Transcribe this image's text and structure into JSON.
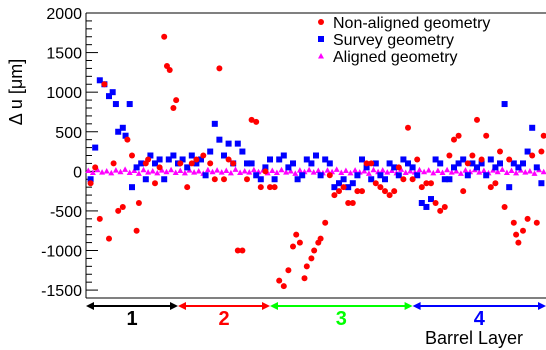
{
  "chart_data": {
    "type": "scatter",
    "title": "",
    "xlabel": "Barrel Layer",
    "ylabel": "Δ u [μm]",
    "ylim": [
      -1600,
      2000
    ],
    "yticks": [
      -1500,
      -1000,
      -500,
      0,
      500,
      1000,
      1500,
      2000
    ],
    "x_range": [
      0,
      100
    ],
    "legend_position": "top-right",
    "grid": false,
    "series": [
      {
        "name": "Non-aligned geometry",
        "color": "#ff0000",
        "marker": "circle",
        "points": [
          [
            1.0,
            -150
          ],
          [
            2.0,
            50
          ],
          [
            3.0,
            -600
          ],
          [
            4.0,
            1100
          ],
          [
            5.0,
            -850
          ],
          [
            6.0,
            100
          ],
          [
            7.0,
            -500
          ],
          [
            8.0,
            -450
          ],
          [
            9.0,
            400
          ],
          [
            10.0,
            200
          ],
          [
            11.0,
            -750
          ],
          [
            11.5,
            -400
          ],
          [
            13.0,
            100
          ],
          [
            13.5,
            150
          ],
          [
            15.0,
            -150
          ],
          [
            16.0,
            50
          ],
          [
            17.0,
            1700
          ],
          [
            17.6,
            1330
          ],
          [
            18.2,
            1280
          ],
          [
            19.0,
            800
          ],
          [
            19.6,
            900
          ],
          [
            20.5,
            100
          ],
          [
            22.0,
            -200
          ],
          [
            23.0,
            100
          ],
          [
            24.0,
            150
          ],
          [
            25.5,
            200
          ],
          [
            27.0,
            100
          ],
          [
            28.0,
            -100
          ],
          [
            29.0,
            1300
          ],
          [
            30.0,
            -100
          ],
          [
            31.0,
            150
          ],
          [
            32.0,
            100
          ],
          [
            33.0,
            -1000
          ],
          [
            34.0,
            -1000
          ],
          [
            35.0,
            -100
          ],
          [
            36.0,
            650
          ],
          [
            37.0,
            625
          ],
          [
            38.0,
            -200
          ],
          [
            39.0,
            0
          ],
          [
            40.0,
            -200
          ],
          [
            41.0,
            -200
          ],
          [
            42.0,
            -1380
          ],
          [
            43.0,
            -1450
          ],
          [
            44.0,
            -1250
          ],
          [
            45.0,
            -950
          ],
          [
            45.7,
            -800
          ],
          [
            46.5,
            -900
          ],
          [
            47.5,
            -1350
          ],
          [
            48.0,
            -1200
          ],
          [
            49.0,
            -1100
          ],
          [
            49.6,
            -1000
          ],
          [
            50.5,
            -900
          ],
          [
            51.0,
            -850
          ],
          [
            52.0,
            -650
          ],
          [
            53.0,
            -50
          ],
          [
            54.0,
            -300
          ],
          [
            55.0,
            -250
          ],
          [
            56.0,
            -200
          ],
          [
            57.0,
            -400
          ],
          [
            58.0,
            -400
          ],
          [
            59.0,
            -250
          ],
          [
            60.0,
            -250
          ],
          [
            61.0,
            100
          ],
          [
            62.0,
            100
          ],
          [
            63.0,
            -150
          ],
          [
            64.0,
            -200
          ],
          [
            65.0,
            -250
          ],
          [
            66.0,
            -300
          ],
          [
            67.0,
            -250
          ],
          [
            68.0,
            50
          ],
          [
            69.0,
            -100
          ],
          [
            70.0,
            550
          ],
          [
            71.0,
            -100
          ],
          [
            72.0,
            150
          ],
          [
            73.0,
            -200
          ],
          [
            74.0,
            -150
          ],
          [
            75.0,
            -150
          ],
          [
            76.0,
            -400
          ],
          [
            77.0,
            -500
          ],
          [
            78.0,
            -450
          ],
          [
            79.0,
            200
          ],
          [
            80.0,
            400
          ],
          [
            81.0,
            450
          ],
          [
            82.0,
            -250
          ],
          [
            83.0,
            100
          ],
          [
            84.0,
            200
          ],
          [
            85.0,
            650
          ],
          [
            86.0,
            150
          ],
          [
            87.0,
            450
          ],
          [
            88.0,
            -200
          ],
          [
            89.0,
            -150
          ],
          [
            90.0,
            250
          ],
          [
            91.0,
            -450
          ],
          [
            92.0,
            150
          ],
          [
            93.0,
            -650
          ],
          [
            93.5,
            -800
          ],
          [
            94.0,
            -900
          ],
          [
            95.0,
            -750
          ],
          [
            96.0,
            -600
          ],
          [
            97.0,
            200
          ],
          [
            98.0,
            -650
          ],
          [
            99.0,
            250
          ],
          [
            99.5,
            450
          ]
        ]
      },
      {
        "name": "Survey geometry",
        "color": "#0000ff",
        "marker": "square",
        "points": [
          [
            1.0,
            -100
          ],
          [
            2.0,
            300
          ],
          [
            3.0,
            1150
          ],
          [
            4.0,
            1100
          ],
          [
            5.0,
            950
          ],
          [
            5.8,
            1000
          ],
          [
            6.5,
            850
          ],
          [
            7.0,
            500
          ],
          [
            8.0,
            550
          ],
          [
            8.6,
            450
          ],
          [
            9.5,
            850
          ],
          [
            10.0,
            -200
          ],
          [
            11.0,
            50
          ],
          [
            12.0,
            100
          ],
          [
            13.0,
            -100
          ],
          [
            14.0,
            200
          ],
          [
            15.0,
            100
          ],
          [
            16.0,
            150
          ],
          [
            17.0,
            -100
          ],
          [
            18.0,
            150
          ],
          [
            19.0,
            200
          ],
          [
            20.0,
            100
          ],
          [
            21.0,
            150
          ],
          [
            22.0,
            50
          ],
          [
            23.0,
            200
          ],
          [
            24.0,
            100
          ],
          [
            25.0,
            150
          ],
          [
            26.0,
            -50
          ],
          [
            27.0,
            250
          ],
          [
            28.0,
            600
          ],
          [
            29.0,
            400
          ],
          [
            30.0,
            200
          ],
          [
            31.0,
            350
          ],
          [
            32.0,
            100
          ],
          [
            33.0,
            350
          ],
          [
            34.0,
            250
          ],
          [
            35.0,
            100
          ],
          [
            36.0,
            100
          ],
          [
            37.0,
            -50
          ],
          [
            38.0,
            -100
          ],
          [
            39.0,
            50
          ],
          [
            40.0,
            150
          ],
          [
            41.0,
            -100
          ],
          [
            42.0,
            150
          ],
          [
            43.0,
            200
          ],
          [
            44.0,
            50
          ],
          [
            45.0,
            100
          ],
          [
            46.0,
            -100
          ],
          [
            47.0,
            -50
          ],
          [
            48.0,
            150
          ],
          [
            49.0,
            100
          ],
          [
            50.0,
            200
          ],
          [
            51.0,
            -50
          ],
          [
            52.0,
            150
          ],
          [
            53.0,
            100
          ],
          [
            54.0,
            -200
          ],
          [
            55.0,
            -150
          ],
          [
            56.0,
            -100
          ],
          [
            57.0,
            -200
          ],
          [
            58.0,
            -150
          ],
          [
            59.0,
            -50
          ],
          [
            60.0,
            150
          ],
          [
            61.0,
            50
          ],
          [
            62.0,
            -100
          ],
          [
            63.0,
            100
          ],
          [
            64.0,
            -50
          ],
          [
            65.0,
            -100
          ],
          [
            66.0,
            100
          ],
          [
            67.0,
            50
          ],
          [
            68.0,
            -50
          ],
          [
            69.0,
            150
          ],
          [
            70.0,
            100
          ],
          [
            71.0,
            50
          ],
          [
            72.0,
            -50
          ],
          [
            73.0,
            -400
          ],
          [
            74.0,
            -450
          ],
          [
            75.0,
            -350
          ],
          [
            76.0,
            150
          ],
          [
            77.0,
            100
          ],
          [
            78.0,
            -100
          ],
          [
            79.0,
            -100
          ],
          [
            80.0,
            50
          ],
          [
            81.0,
            100
          ],
          [
            82.0,
            150
          ],
          [
            83.0,
            -50
          ],
          [
            84.0,
            100
          ],
          [
            85.0,
            50
          ],
          [
            86.0,
            100
          ],
          [
            87.0,
            -50
          ],
          [
            88.0,
            150
          ],
          [
            89.0,
            50
          ],
          [
            90.0,
            100
          ],
          [
            91.0,
            850
          ],
          [
            92.0,
            -200
          ],
          [
            93.0,
            100
          ],
          [
            94.0,
            50
          ],
          [
            95.0,
            100
          ],
          [
            96.0,
            250
          ],
          [
            97.0,
            550
          ],
          [
            98.0,
            50
          ],
          [
            99.0,
            -150
          ]
        ]
      },
      {
        "name": "Aligned geometry",
        "color": "#ff00ff",
        "marker": "triangle",
        "points": [
          [
            0.5,
            10
          ],
          [
            1.5,
            -15
          ],
          [
            2.5,
            20
          ],
          [
            3.5,
            -10
          ],
          [
            4.5,
            5
          ],
          [
            5.5,
            -20
          ],
          [
            6.5,
            15
          ],
          [
            7.5,
            -5
          ],
          [
            8.5,
            25
          ],
          [
            9.5,
            -15
          ],
          [
            10.5,
            10
          ],
          [
            11.5,
            -25
          ],
          [
            12.5,
            20
          ],
          [
            13.5,
            -10
          ],
          [
            14.5,
            5
          ],
          [
            15.5,
            -20
          ],
          [
            16.5,
            15
          ],
          [
            17.5,
            -5
          ],
          [
            18.5,
            20
          ],
          [
            19.5,
            -15
          ],
          [
            20.5,
            10
          ],
          [
            21.5,
            -20
          ],
          [
            22.5,
            15
          ],
          [
            23.5,
            -10
          ],
          [
            24.5,
            5
          ],
          [
            25.5,
            -25
          ],
          [
            26.5,
            20
          ],
          [
            27.5,
            -5
          ],
          [
            28.5,
            15
          ],
          [
            29.5,
            -10
          ],
          [
            30.5,
            10
          ],
          [
            31.5,
            -20
          ],
          [
            32.5,
            25
          ],
          [
            33.5,
            -15
          ],
          [
            34.5,
            5
          ],
          [
            35.5,
            -10
          ],
          [
            36.5,
            20
          ],
          [
            37.5,
            -5
          ],
          [
            38.5,
            15
          ],
          [
            39.5,
            -20
          ],
          [
            40.5,
            10
          ],
          [
            41.5,
            -15
          ],
          [
            42.5,
            20
          ],
          [
            43.5,
            -10
          ],
          [
            44.5,
            5
          ],
          [
            45.5,
            -25
          ],
          [
            46.5,
            15
          ],
          [
            47.5,
            -5
          ],
          [
            48.5,
            20
          ],
          [
            49.5,
            -10
          ],
          [
            50.5,
            10
          ],
          [
            51.5,
            -20
          ],
          [
            52.5,
            15
          ],
          [
            53.5,
            -5
          ],
          [
            54.5,
            25
          ],
          [
            55.5,
            -15
          ],
          [
            56.5,
            10
          ],
          [
            57.5,
            -20
          ],
          [
            58.5,
            15
          ],
          [
            59.5,
            -10
          ],
          [
            60.5,
            5
          ],
          [
            61.5,
            -25
          ],
          [
            62.5,
            20
          ],
          [
            63.5,
            -5
          ],
          [
            64.5,
            15
          ],
          [
            65.5,
            -10
          ],
          [
            66.5,
            10
          ],
          [
            67.5,
            -20
          ],
          [
            68.5,
            25
          ],
          [
            69.5,
            -15
          ],
          [
            70.5,
            5
          ],
          [
            71.5,
            -10
          ],
          [
            72.5,
            20
          ],
          [
            73.5,
            -5
          ],
          [
            74.5,
            15
          ],
          [
            75.5,
            -20
          ],
          [
            76.5,
            10
          ],
          [
            77.5,
            -15
          ],
          [
            78.5,
            20
          ],
          [
            79.5,
            -10
          ],
          [
            80.5,
            5
          ],
          [
            81.5,
            -25
          ],
          [
            82.5,
            15
          ],
          [
            83.5,
            -5
          ],
          [
            84.5,
            20
          ],
          [
            85.5,
            -10
          ],
          [
            86.5,
            10
          ],
          [
            87.5,
            -20
          ],
          [
            88.5,
            15
          ],
          [
            89.5,
            -5
          ],
          [
            90.5,
            25
          ],
          [
            91.5,
            -15
          ],
          [
            92.5,
            10
          ],
          [
            93.5,
            -20
          ],
          [
            94.5,
            15
          ],
          [
            95.5,
            -10
          ],
          [
            96.5,
            5
          ],
          [
            97.5,
            -25
          ],
          [
            98.5,
            20
          ],
          [
            99.5,
            -5
          ]
        ]
      }
    ],
    "layers": [
      {
        "label": "1",
        "x_start": 0,
        "x_end": 20,
        "color": "#000000"
      },
      {
        "label": "2",
        "x_start": 20,
        "x_end": 40,
        "color": "#ff0000"
      },
      {
        "label": "3",
        "x_start": 40,
        "x_end": 71,
        "color": "#00ff00"
      },
      {
        "label": "4",
        "x_start": 71,
        "x_end": 100,
        "color": "#0000ff"
      }
    ]
  }
}
